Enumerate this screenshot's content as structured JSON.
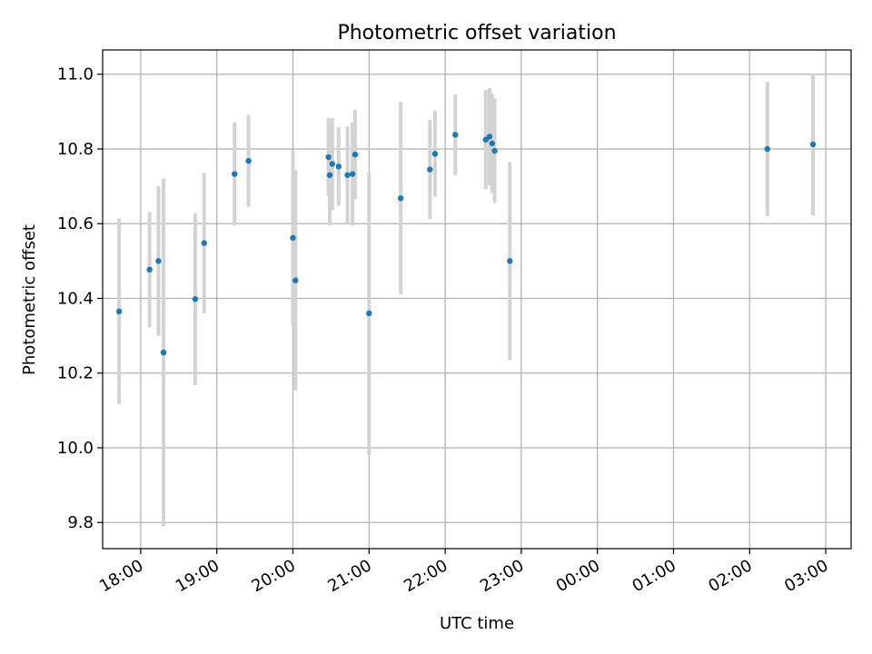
{
  "chart_data": {
    "type": "scatter",
    "title": "Photometric offset variation",
    "xlabel": "UTC time",
    "ylabel": "Photometric offset",
    "xlim": [
      "17:30",
      "03:20"
    ],
    "ylim": [
      9.73,
      11.065
    ],
    "grid": true,
    "x_ticks": [
      "18:00",
      "19:00",
      "20:00",
      "21:00",
      "22:00",
      "23:00",
      "00:00",
      "01:00",
      "02:00",
      "03:00"
    ],
    "y_ticks": [
      9.8,
      10.0,
      10.2,
      10.4,
      10.6,
      10.8,
      11.0
    ],
    "y_tick_labels": [
      "9.8",
      "10.0",
      "10.2",
      "10.4",
      "10.6",
      "10.8",
      "11.0"
    ],
    "colors": {
      "point": "#1f77b4",
      "errorbar": "#d3d3d3",
      "grid": "#b0b0b0"
    },
    "points": [
      {
        "x": "17:43",
        "y": 10.365,
        "err": 0.248
      },
      {
        "x": "18:07",
        "y": 10.477,
        "err": 0.155
      },
      {
        "x": "18:14",
        "y": 10.5,
        "err": 0.2
      },
      {
        "x": "18:18",
        "y": 10.255,
        "err": 0.465
      },
      {
        "x": "18:43",
        "y": 10.398,
        "err": 0.23
      },
      {
        "x": "18:50",
        "y": 10.548,
        "err": 0.188
      },
      {
        "x": "19:14",
        "y": 10.733,
        "err": 0.138
      },
      {
        "x": "19:25",
        "y": 10.768,
        "err": 0.123
      },
      {
        "x": "20:00",
        "y": 10.562,
        "err": 0.235
      },
      {
        "x": "20:02",
        "y": 10.448,
        "err": 0.295
      },
      {
        "x": "20:28",
        "y": 10.778,
        "err": 0.105
      },
      {
        "x": "20:29",
        "y": 10.73,
        "err": 0.135
      },
      {
        "x": "20:31",
        "y": 10.76,
        "err": 0.123
      },
      {
        "x": "20:36",
        "y": 10.753,
        "err": 0.105
      },
      {
        "x": "20:43",
        "y": 10.73,
        "err": 0.13
      },
      {
        "x": "20:47",
        "y": 10.733,
        "err": 0.138
      },
      {
        "x": "20:49",
        "y": 10.785,
        "err": 0.12
      },
      {
        "x": "21:00",
        "y": 10.36,
        "err": 0.378
      },
      {
        "x": "21:25",
        "y": 10.668,
        "err": 0.258
      },
      {
        "x": "21:48",
        "y": 10.745,
        "err": 0.133
      },
      {
        "x": "21:52",
        "y": 10.787,
        "err": 0.115
      },
      {
        "x": "22:08",
        "y": 10.838,
        "err": 0.108
      },
      {
        "x": "22:32",
        "y": 10.825,
        "err": 0.133
      },
      {
        "x": "22:35",
        "y": 10.833,
        "err": 0.13
      },
      {
        "x": "22:37",
        "y": 10.815,
        "err": 0.133
      },
      {
        "x": "22:39",
        "y": 10.795,
        "err": 0.14
      },
      {
        "x": "22:51",
        "y": 10.5,
        "err": 0.265
      },
      {
        "x": "02:14",
        "y": 10.8,
        "err": 0.18
      },
      {
        "x": "02:50",
        "y": 10.812,
        "err": 0.19
      }
    ]
  }
}
